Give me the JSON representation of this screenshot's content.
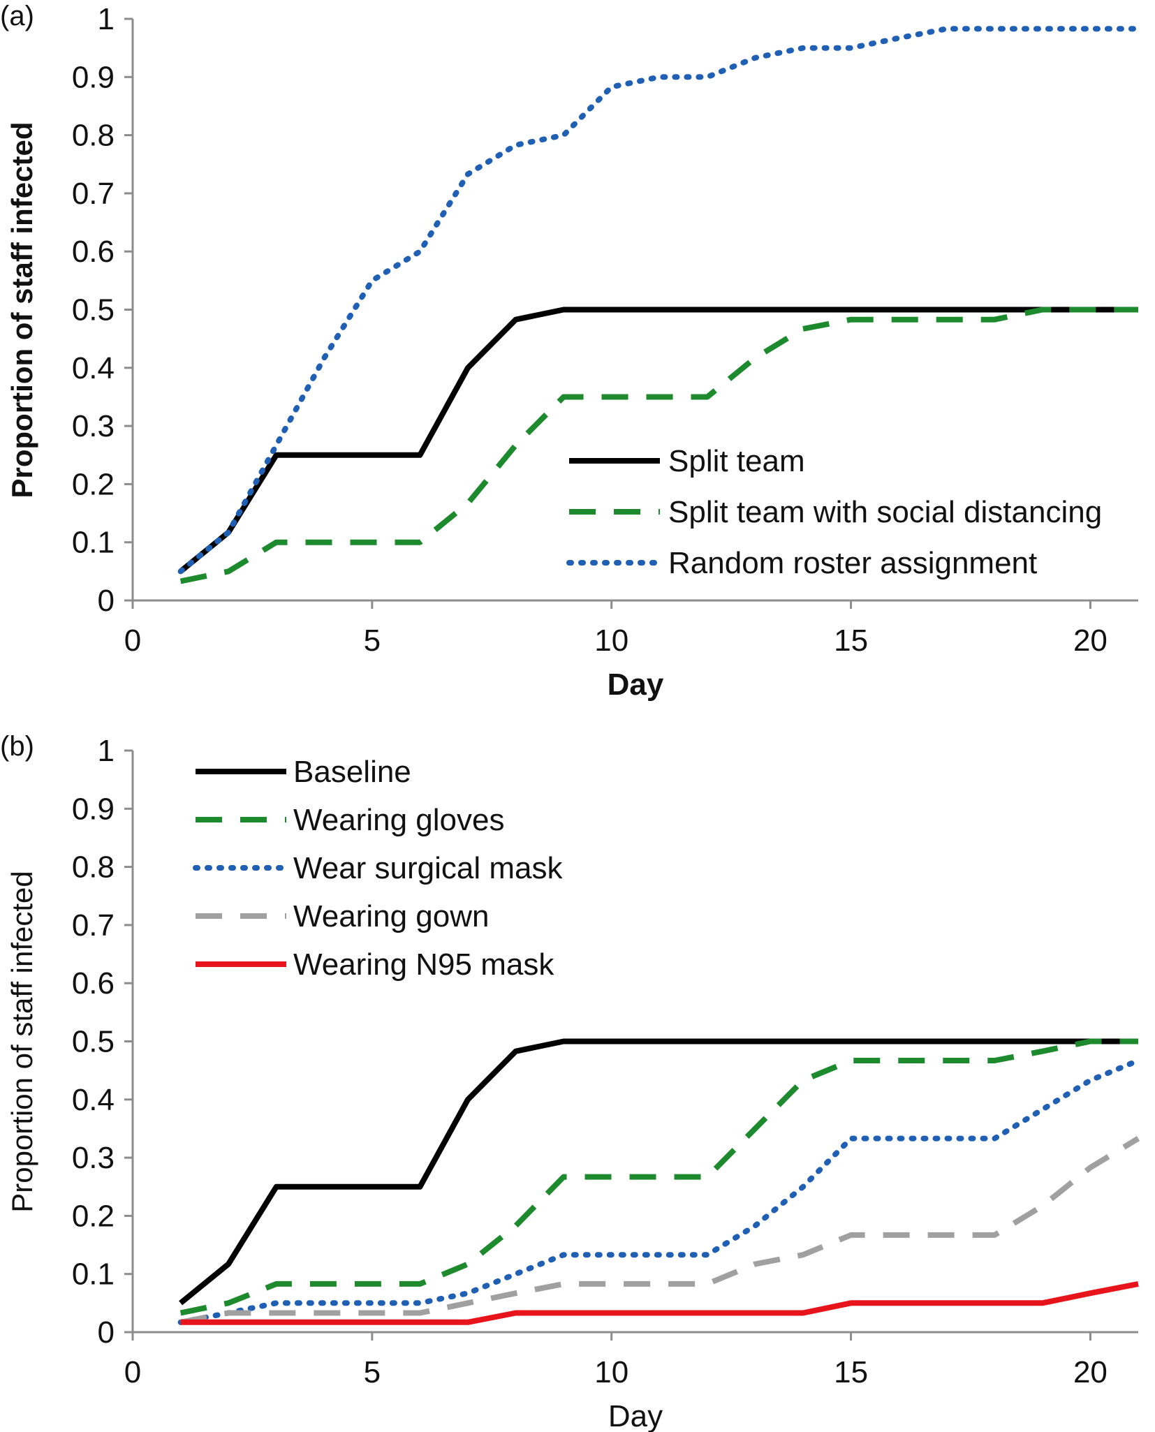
{
  "chart_data": [
    {
      "type": "line",
      "panel_label": "(a)",
      "xlabel": "Day",
      "ylabel": "Proportion of staff infected",
      "xlim": [
        0,
        21
      ],
      "ylim": [
        0,
        1
      ],
      "xticks": [
        0,
        5,
        10,
        15,
        20
      ],
      "yticks": [
        0,
        0.1,
        0.2,
        0.3,
        0.4,
        0.5,
        0.6,
        0.7,
        0.8,
        0.9,
        1
      ],
      "grid": false,
      "legend_position": "bottom-right",
      "series": [
        {
          "name": "Split team",
          "color": "#000000",
          "style": "solid",
          "x": [
            1,
            2,
            3,
            4,
            5,
            6,
            7,
            8,
            9,
            10,
            11,
            12,
            13,
            14,
            15,
            16,
            17,
            18,
            19,
            20,
            21
          ],
          "values": [
            0.05,
            0.117,
            0.25,
            0.25,
            0.25,
            0.25,
            0.4,
            0.483,
            0.5,
            0.5,
            0.5,
            0.5,
            0.5,
            0.5,
            0.5,
            0.5,
            0.5,
            0.5,
            0.5,
            0.5,
            0.5
          ]
        },
        {
          "name": "Split team with social distancing",
          "color": "#1e8a2e",
          "style": "dashed",
          "x": [
            1,
            2,
            3,
            4,
            5,
            6,
            7,
            8,
            9,
            10,
            11,
            12,
            13,
            14,
            15,
            16,
            17,
            18,
            19,
            20,
            21
          ],
          "values": [
            0.033,
            0.05,
            0.1,
            0.1,
            0.1,
            0.1,
            0.167,
            0.267,
            0.35,
            0.35,
            0.35,
            0.35,
            0.417,
            0.467,
            0.483,
            0.483,
            0.483,
            0.483,
            0.5,
            0.5,
            0.5
          ]
        },
        {
          "name": "Random roster assignment",
          "color": "#1f5fb4",
          "style": "dotted",
          "x": [
            1,
            2,
            3,
            4,
            5,
            6,
            7,
            8,
            9,
            10,
            11,
            12,
            13,
            14,
            15,
            16,
            17,
            18,
            19,
            20,
            21
          ],
          "values": [
            0.05,
            0.117,
            0.267,
            0.417,
            0.55,
            0.6,
            0.733,
            0.783,
            0.8,
            0.883,
            0.9,
            0.9,
            0.933,
            0.95,
            0.95,
            0.967,
            0.983,
            0.983,
            0.983,
            0.983,
            0.983
          ]
        }
      ]
    },
    {
      "type": "line",
      "panel_label": "(b)",
      "xlabel": "Day",
      "ylabel": "Proportion of staff infected",
      "xlim": [
        0,
        21
      ],
      "ylim": [
        0,
        1
      ],
      "xticks": [
        0,
        5,
        10,
        15,
        20
      ],
      "yticks": [
        0,
        0.1,
        0.2,
        0.3,
        0.4,
        0.5,
        0.6,
        0.7,
        0.8,
        0.9,
        1
      ],
      "grid": false,
      "legend_position": "top-left",
      "series": [
        {
          "name": "Baseline",
          "color": "#000000",
          "style": "solid",
          "x": [
            1,
            2,
            3,
            4,
            5,
            6,
            7,
            8,
            9,
            10,
            11,
            12,
            13,
            14,
            15,
            16,
            17,
            18,
            19,
            20,
            21
          ],
          "values": [
            0.05,
            0.117,
            0.25,
            0.25,
            0.25,
            0.25,
            0.4,
            0.483,
            0.5,
            0.5,
            0.5,
            0.5,
            0.5,
            0.5,
            0.5,
            0.5,
            0.5,
            0.5,
            0.5,
            0.5,
            0.5
          ]
        },
        {
          "name": "Wearing gloves",
          "color": "#1e8a2e",
          "style": "dashed",
          "x": [
            1,
            2,
            3,
            4,
            5,
            6,
            7,
            8,
            9,
            10,
            11,
            12,
            13,
            14,
            15,
            16,
            17,
            18,
            19,
            20,
            21
          ],
          "values": [
            0.033,
            0.05,
            0.083,
            0.083,
            0.083,
            0.083,
            0.117,
            0.183,
            0.267,
            0.267,
            0.267,
            0.267,
            0.35,
            0.433,
            0.467,
            0.467,
            0.467,
            0.467,
            0.483,
            0.5,
            0.5
          ]
        },
        {
          "name": "Wear surgical mask",
          "color": "#1f5fb4",
          "style": "dotted",
          "x": [
            1,
            2,
            3,
            4,
            5,
            6,
            7,
            8,
            9,
            10,
            11,
            12,
            13,
            14,
            15,
            16,
            17,
            18,
            19,
            20,
            21
          ],
          "values": [
            0.017,
            0.033,
            0.05,
            0.05,
            0.05,
            0.05,
            0.067,
            0.1,
            0.133,
            0.133,
            0.133,
            0.133,
            0.183,
            0.25,
            0.333,
            0.333,
            0.333,
            0.333,
            0.383,
            0.433,
            0.467
          ]
        },
        {
          "name": "Wearing gown",
          "color": "#a0a0a0",
          "style": "dashed",
          "x": [
            1,
            2,
            3,
            4,
            5,
            6,
            7,
            8,
            9,
            10,
            11,
            12,
            13,
            14,
            15,
            16,
            17,
            18,
            19,
            20,
            21
          ],
          "values": [
            0.017,
            0.033,
            0.033,
            0.033,
            0.033,
            0.033,
            0.05,
            0.067,
            0.083,
            0.083,
            0.083,
            0.083,
            0.117,
            0.133,
            0.167,
            0.167,
            0.167,
            0.167,
            0.217,
            0.283,
            0.333
          ]
        },
        {
          "name": "Wearing N95 mask",
          "color": "#e8141c",
          "style": "solid",
          "x": [
            1,
            2,
            3,
            4,
            5,
            6,
            7,
            8,
            9,
            10,
            11,
            12,
            13,
            14,
            15,
            16,
            17,
            18,
            19,
            20,
            21
          ],
          "values": [
            0.017,
            0.017,
            0.017,
            0.017,
            0.017,
            0.017,
            0.017,
            0.033,
            0.033,
            0.033,
            0.033,
            0.033,
            0.033,
            0.033,
            0.05,
            0.05,
            0.05,
            0.05,
            0.05,
            0.067,
            0.083
          ]
        }
      ]
    }
  ]
}
